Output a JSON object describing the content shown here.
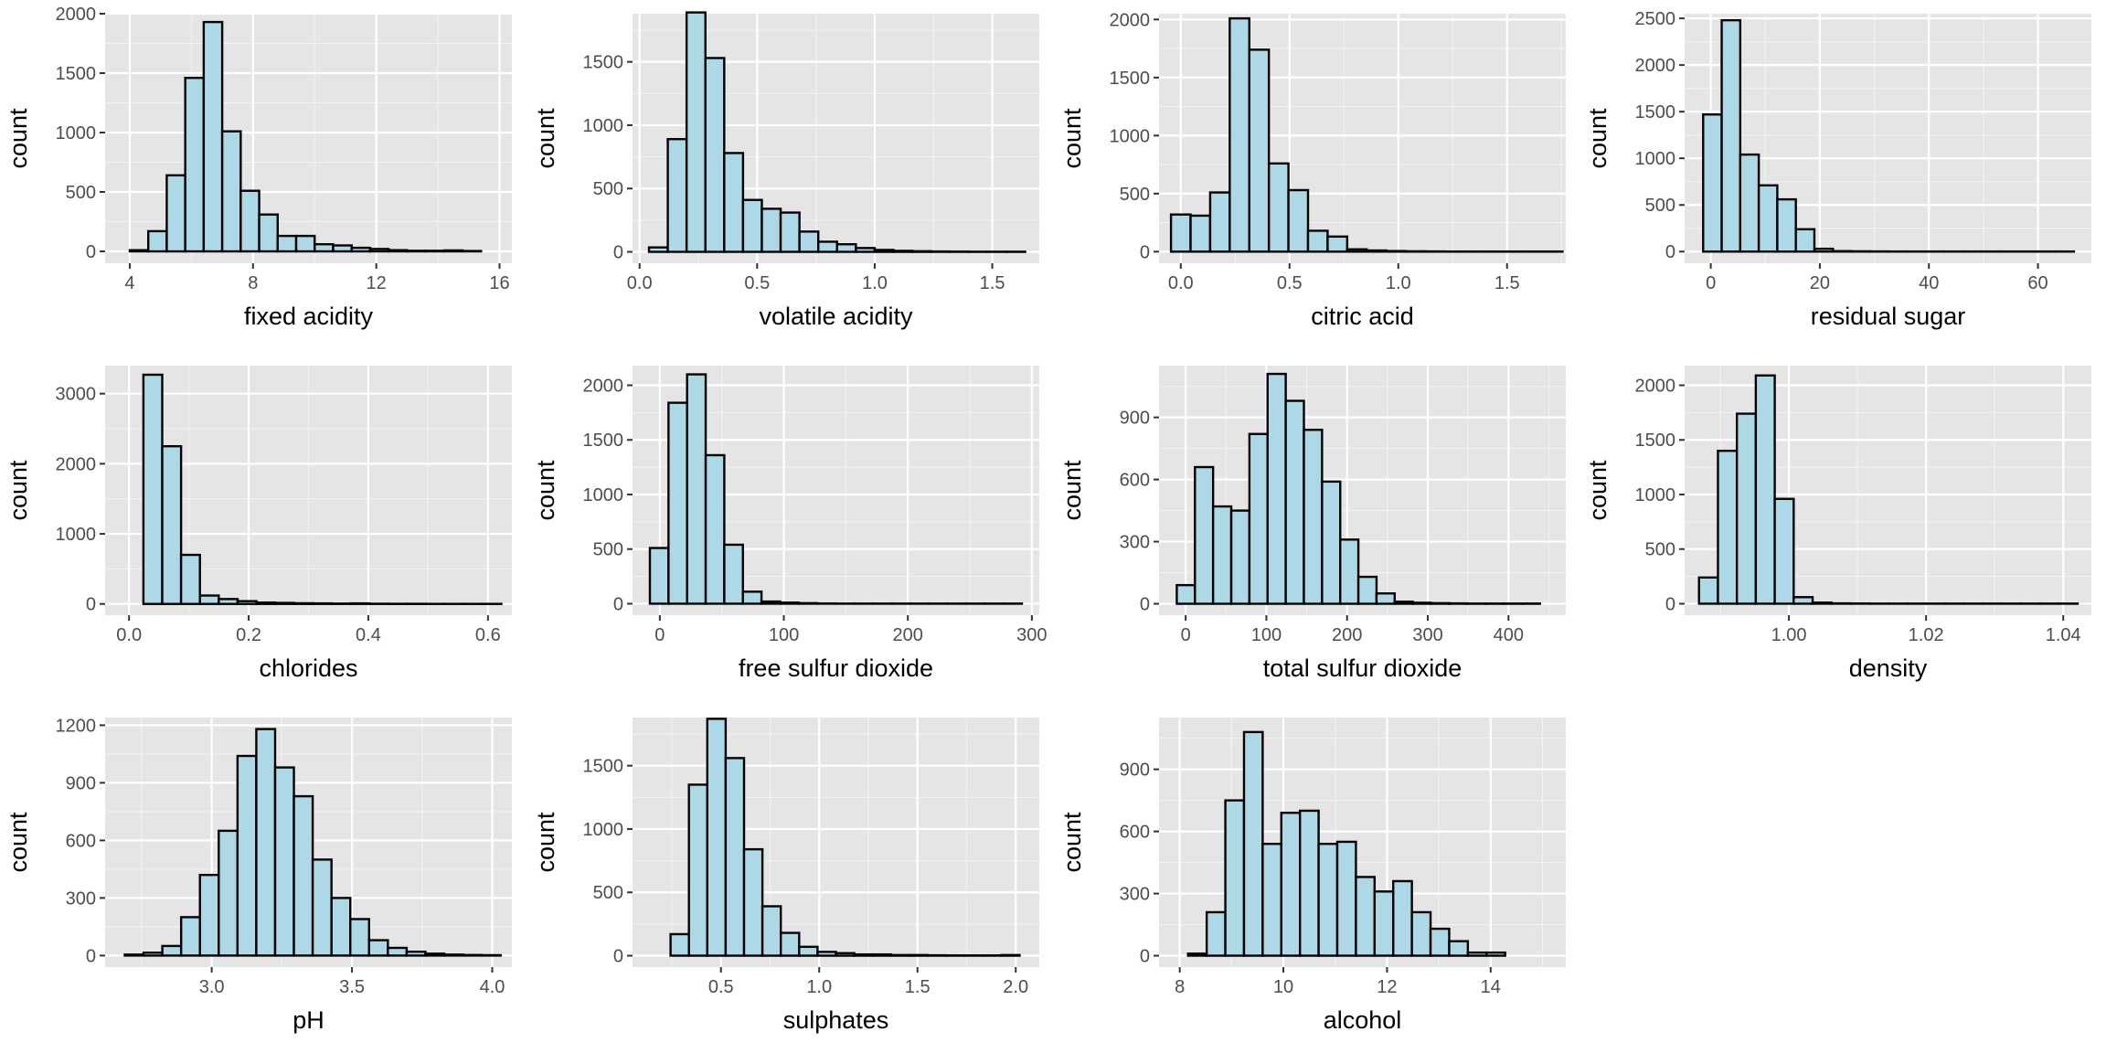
{
  "chart_data": [
    {
      "type": "bar",
      "xlabel": "fixed acidity",
      "ylabel": "count",
      "bin_start": 3.4,
      "bin_width": 0.6,
      "values": [
        0,
        10,
        170,
        640,
        1460,
        1930,
        1010,
        510,
        310,
        130,
        130,
        60,
        50,
        30,
        20,
        10,
        5,
        5,
        8,
        3
      ],
      "xlim": [
        3.2,
        16.4
      ],
      "ylim": [
        -100,
        2000
      ],
      "x_ticks": [
        4,
        8,
        12,
        16
      ],
      "y_ticks": [
        0,
        500,
        1000,
        1500,
        2000
      ]
    },
    {
      "type": "bar",
      "xlabel": "volatile acidity",
      "ylabel": "count",
      "bin_start": 0.04,
      "bin_width": 0.08,
      "values": [
        35,
        890,
        1890,
        1530,
        780,
        410,
        340,
        310,
        160,
        80,
        60,
        30,
        15,
        8,
        5,
        3,
        2,
        1,
        1,
        1
      ],
      "xlim": [
        -0.03,
        1.7
      ],
      "ylim": [
        -90,
        1880
      ],
      "x_ticks": [
        0.0,
        0.5,
        1.0,
        1.5
      ],
      "y_ticks": [
        0,
        500,
        1000,
        1500
      ]
    },
    {
      "type": "bar",
      "xlabel": "citric acid",
      "ylabel": "count",
      "bin_start": -0.045,
      "bin_width": 0.09,
      "values": [
        320,
        310,
        510,
        2010,
        1740,
        760,
        530,
        180,
        130,
        20,
        10,
        5,
        3,
        2,
        1,
        1,
        1,
        1,
        1,
        1
      ],
      "xlim": [
        -0.1,
        1.77
      ],
      "ylim": [
        -100,
        2050
      ],
      "x_ticks": [
        0.0,
        0.5,
        1.0,
        1.5
      ],
      "y_ticks": [
        0,
        500,
        1000,
        1500,
        2000
      ]
    },
    {
      "type": "bar",
      "xlabel": "residual sugar",
      "ylabel": "count",
      "bin_start": -1.4,
      "bin_width": 3.4,
      "values": [
        1470,
        2480,
        1040,
        710,
        560,
        240,
        30,
        5,
        3,
        2,
        1,
        1,
        1,
        1,
        1,
        1,
        1,
        1,
        1,
        1
      ],
      "xlim": [
        -4.8,
        69.8
      ],
      "ylim": [
        -125,
        2550
      ],
      "x_ticks": [
        0,
        20,
        40,
        60
      ],
      "y_ticks": [
        0,
        500,
        1000,
        1500,
        2000,
        2500
      ]
    },
    {
      "type": "bar",
      "xlabel": "chlorides",
      "ylabel": "count",
      "bin_start": -0.0075,
      "bin_width": 0.0315,
      "values": [
        0,
        3270,
        2250,
        700,
        120,
        70,
        40,
        20,
        15,
        10,
        8,
        5,
        8,
        3,
        2,
        2,
        1,
        1,
        1,
        1
      ],
      "xlim": [
        -0.04,
        0.64
      ],
      "ylim": [
        -160,
        3400
      ],
      "x_ticks": [
        0.0,
        0.2,
        0.4,
        0.6
      ],
      "y_ticks": [
        0,
        1000,
        2000,
        3000
      ]
    },
    {
      "type": "bar",
      "xlabel": "free sulfur dioxide",
      "ylabel": "count",
      "bin_start": -8,
      "bin_width": 15,
      "values": [
        510,
        1840,
        2100,
        1360,
        540,
        110,
        20,
        10,
        5,
        2,
        1,
        1,
        1,
        1,
        1,
        1,
        1,
        1,
        1,
        1
      ],
      "xlim": [
        -22,
        306
      ],
      "ylim": [
        -105,
        2180
      ],
      "x_ticks": [
        0,
        100,
        200,
        300
      ],
      "y_ticks": [
        0,
        500,
        1000,
        1500,
        2000
      ]
    },
    {
      "type": "bar",
      "xlabel": "total sulfur dioxide",
      "ylabel": "count",
      "bin_start": -11,
      "bin_width": 22.5,
      "values": [
        90,
        660,
        470,
        450,
        820,
        1110,
        980,
        840,
        590,
        310,
        130,
        50,
        10,
        5,
        3,
        2,
        1,
        1,
        1,
        1
      ],
      "xlim": [
        -33,
        471
      ],
      "ylim": [
        -55,
        1150
      ],
      "x_ticks": [
        0,
        100,
        200,
        300,
        400
      ],
      "y_ticks": [
        0,
        300,
        600,
        900
      ]
    },
    {
      "type": "bar",
      "xlabel": "density",
      "ylabel": "count",
      "bin_start": 0.9869,
      "bin_width": 0.00276,
      "values": [
        240,
        1400,
        1740,
        2090,
        960,
        60,
        10,
        3,
        2,
        1,
        1,
        1,
        1,
        1,
        1,
        1,
        1,
        1,
        1,
        1
      ],
      "xlim": [
        0.9848,
        1.0441
      ],
      "ylim": [
        -105,
        2180
      ],
      "x_ticks": [
        1.0,
        1.02,
        1.04
      ],
      "x_tick_labels": [
        "1.00",
        "1.02",
        "1.04"
      ],
      "y_ticks": [
        0,
        500,
        1000,
        1500,
        2000
      ]
    },
    {
      "type": "bar",
      "xlabel": "pH",
      "ylabel": "count",
      "bin_start": 2.69,
      "bin_width": 0.067,
      "values": [
        5,
        15,
        50,
        200,
        420,
        650,
        1040,
        1180,
        980,
        830,
        500,
        300,
        190,
        80,
        40,
        20,
        10,
        5,
        3,
        2
      ],
      "xlim": [
        2.62,
        4.07
      ],
      "ylim": [
        -60,
        1240
      ],
      "x_ticks": [
        3.0,
        3.5,
        4.0
      ],
      "y_ticks": [
        0,
        300,
        600,
        900,
        1200
      ]
    },
    {
      "type": "bar",
      "xlabel": "sulphates",
      "ylabel": "count",
      "bin_start": 0.15,
      "bin_width": 0.0935,
      "values": [
        0,
        170,
        1350,
        1870,
        1560,
        840,
        390,
        180,
        70,
        30,
        20,
        10,
        10,
        5,
        5,
        3,
        2,
        2,
        2,
        5
      ],
      "xlim": [
        0.05,
        2.12
      ],
      "ylim": [
        -90,
        1880
      ],
      "x_ticks": [
        0.5,
        1.0,
        1.5,
        2.0
      ],
      "y_ticks": [
        0,
        500,
        1000,
        1500
      ]
    },
    {
      "type": "bar",
      "xlabel": "alcohol",
      "ylabel": "count",
      "bin_start": 7.8,
      "bin_width": 0.36,
      "values": [
        0,
        10,
        210,
        750,
        1080,
        540,
        690,
        700,
        540,
        550,
        380,
        310,
        360,
        210,
        130,
        70,
        15,
        15,
        0,
        0
      ],
      "xlim": [
        7.6,
        15.45
      ],
      "ylim": [
        -55,
        1150
      ],
      "x_ticks": [
        8,
        10,
        12,
        14
      ],
      "y_ticks": [
        0,
        300,
        600,
        900
      ]
    }
  ]
}
